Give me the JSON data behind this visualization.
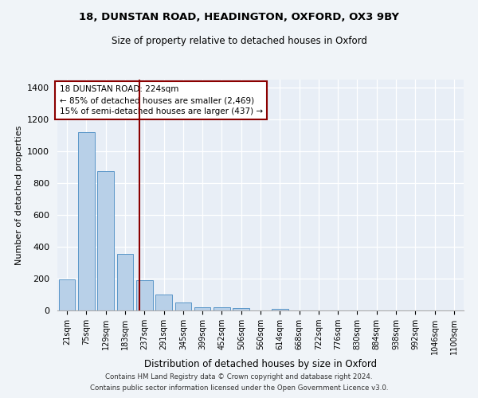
{
  "title1": "18, DUNSTAN ROAD, HEADINGTON, OXFORD, OX3 9BY",
  "title2": "Size of property relative to detached houses in Oxford",
  "xlabel": "Distribution of detached houses by size in Oxford",
  "ylabel": "Number of detached properties",
  "categories": [
    "21sqm",
    "75sqm",
    "129sqm",
    "183sqm",
    "237sqm",
    "291sqm",
    "345sqm",
    "399sqm",
    "452sqm",
    "506sqm",
    "560sqm",
    "614sqm",
    "668sqm",
    "722sqm",
    "776sqm",
    "830sqm",
    "884sqm",
    "938sqm",
    "992sqm",
    "1046sqm",
    "1100sqm"
  ],
  "values": [
    195,
    1120,
    875,
    355,
    190,
    100,
    50,
    22,
    18,
    15,
    0,
    12,
    0,
    0,
    0,
    0,
    0,
    0,
    0,
    0,
    0
  ],
  "bar_color": "#b8d0e8",
  "bar_edge_color": "#5a96c8",
  "vline_color": "#8b0000",
  "annotation_text": "18 DUNSTAN ROAD: 224sqm\n← 85% of detached houses are smaller (2,469)\n15% of semi-detached houses are larger (437) →",
  "annotation_box_color": "#ffffff",
  "annotation_box_edge": "#8b0000",
  "ylim": [
    0,
    1450
  ],
  "yticks": [
    0,
    200,
    400,
    600,
    800,
    1000,
    1200,
    1400
  ],
  "footer1": "Contains HM Land Registry data © Crown copyright and database right 2024.",
  "footer2": "Contains public sector information licensed under the Open Government Licence v3.0.",
  "bg_color": "#f0f4f8",
  "plot_bg": "#e8eef6"
}
